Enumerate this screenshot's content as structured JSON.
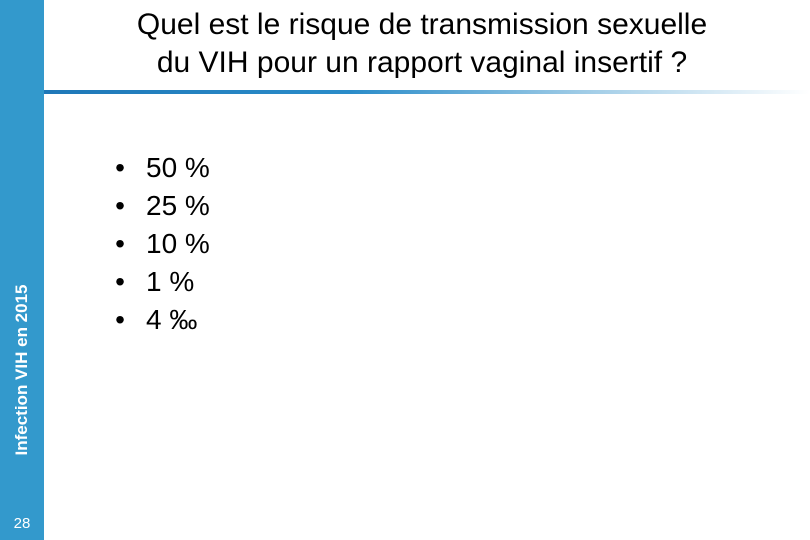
{
  "slide": {
    "title_line1": "Quel est le risque de transmission sexuelle",
    "title_line2": "du VIH pour un rapport vaginal insertif  ?",
    "sidebar_label": "Infection VIH en 2015",
    "page_number": "28",
    "options": [
      "50 %",
      "25 %",
      "10 %",
      "1 %",
      "4 ‰"
    ],
    "colors": {
      "sidebar_bg": "#3399cc",
      "sidebar_text": "#ffffff",
      "title_text": "#000000",
      "body_text": "#000000",
      "background": "#ffffff",
      "underline_start": "#1f78b8",
      "underline_end": "#ffffff"
    },
    "typography": {
      "title_fontsize": 30,
      "body_fontsize": 28,
      "sidebar_fontsize": 17,
      "pagenum_fontsize": 15,
      "font_family": "Arial"
    }
  }
}
